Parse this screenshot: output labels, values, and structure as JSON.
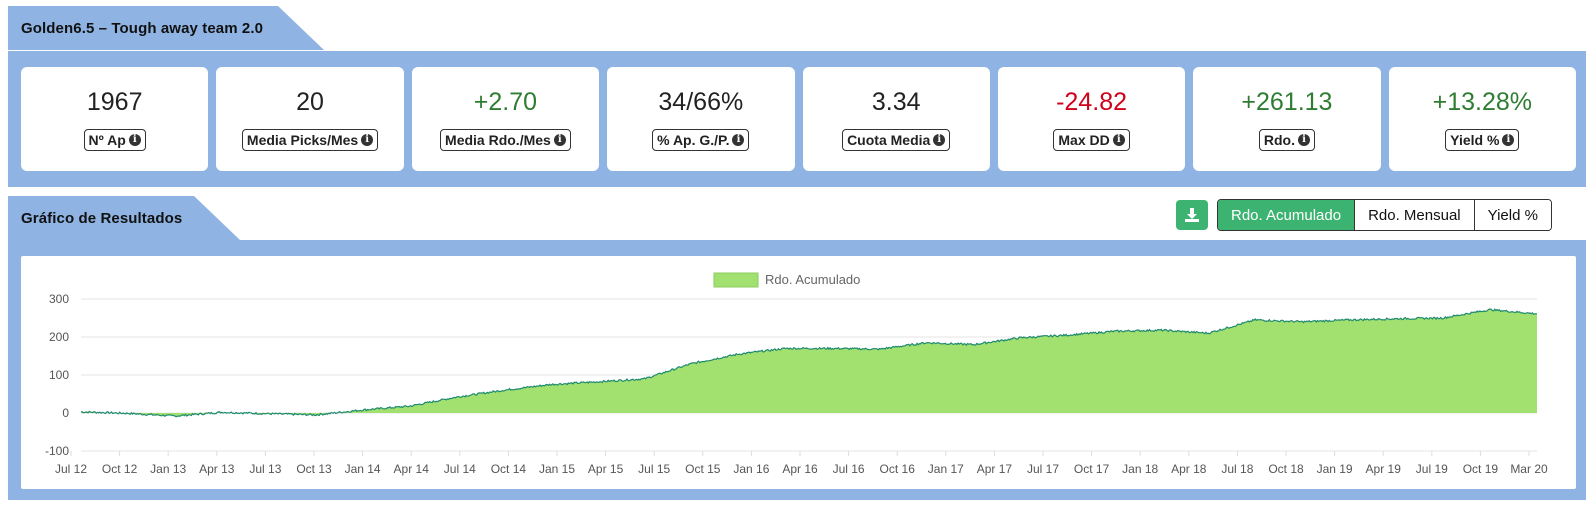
{
  "header": {
    "title": "Golden6.5 – Tough away team 2.0"
  },
  "stats": [
    {
      "value": "1967",
      "label": "Nº Ap",
      "color": "#222222"
    },
    {
      "value": "20",
      "label": "Media Picks/Mes",
      "color": "#222222"
    },
    {
      "value": "+2.70",
      "label": "Media Rdo./Mes",
      "color": "#2e7d32"
    },
    {
      "value": "34/66%",
      "label": "% Ap. G./P.",
      "color": "#222222"
    },
    {
      "value": "3.34",
      "label": "Cuota Media",
      "color": "#222222"
    },
    {
      "value": "-24.82",
      "label": "Max DD",
      "color": "#d0021b"
    },
    {
      "value": "+261.13",
      "label": "Rdo.",
      "color": "#2e7d32"
    },
    {
      "value": "+13.28%",
      "label": "Yield %",
      "color": "#2e7d32"
    }
  ],
  "chart_section": {
    "title": "Gráfico de Resultados",
    "download_icon": "download-icon",
    "buttons": [
      "Rdo. Acumulado",
      "Rdo. Mensual",
      "Yield %"
    ],
    "active_button": "Rdo. Acumulado"
  },
  "colors": {
    "band": "#8fb4e3",
    "accent": "#3cb371",
    "area_fill": "#a2e06f",
    "area_line": "#1e8a6e"
  },
  "chart_data": {
    "type": "area",
    "legend": "Rdo. Acumulado",
    "legend_position": "top-center",
    "grid": true,
    "ylim": [
      -100,
      300
    ],
    "yticks": [
      "300",
      "200",
      "100",
      "0",
      "-100"
    ],
    "xticks": [
      "Jul 12",
      "Oct 12",
      "Jan 13",
      "Apr 13",
      "Jul 13",
      "Oct 13",
      "Jan 14",
      "Apr 14",
      "Jul 14",
      "Oct 14",
      "Jan 15",
      "Apr 15",
      "Jul 15",
      "Oct 15",
      "Jan 16",
      "Apr 16",
      "Jul 16",
      "Oct 16",
      "Jan 17",
      "Apr 17",
      "Jul 17",
      "Oct 17",
      "Jan 18",
      "Apr 18",
      "Jul 18",
      "Oct 18",
      "Jan 19",
      "Apr 19",
      "Jul 19",
      "Oct 19",
      "Mar 20"
    ],
    "series": [
      {
        "name": "Rdo. Acumulado",
        "x": [
          "Jul 12",
          "Oct 12",
          "Jan 13",
          "Apr 13",
          "Jul 13",
          "Oct 13",
          "Jan 14",
          "Apr 14",
          "Jul 14",
          "Oct 14",
          "Jan 15",
          "Apr 15",
          "Jul 15",
          "Oct 15",
          "Jan 16",
          "Apr 16",
          "Jul 16",
          "Oct 16",
          "Jan 17",
          "Apr 17",
          "Jul 17",
          "Oct 17",
          "Jan 18",
          "Apr 18",
          "Jul 18",
          "Oct 18",
          "Jan 19",
          "Apr 19",
          "Jul 19",
          "Oct 19",
          "Jan 20",
          "Mar 20"
        ],
        "values": [
          3,
          -1,
          -8,
          2,
          -2,
          -5,
          8,
          18,
          42,
          60,
          75,
          82,
          90,
          130,
          155,
          170,
          170,
          168,
          185,
          180,
          198,
          205,
          215,
          218,
          210,
          245,
          240,
          245,
          248,
          250,
          272,
          261
        ]
      }
    ]
  }
}
